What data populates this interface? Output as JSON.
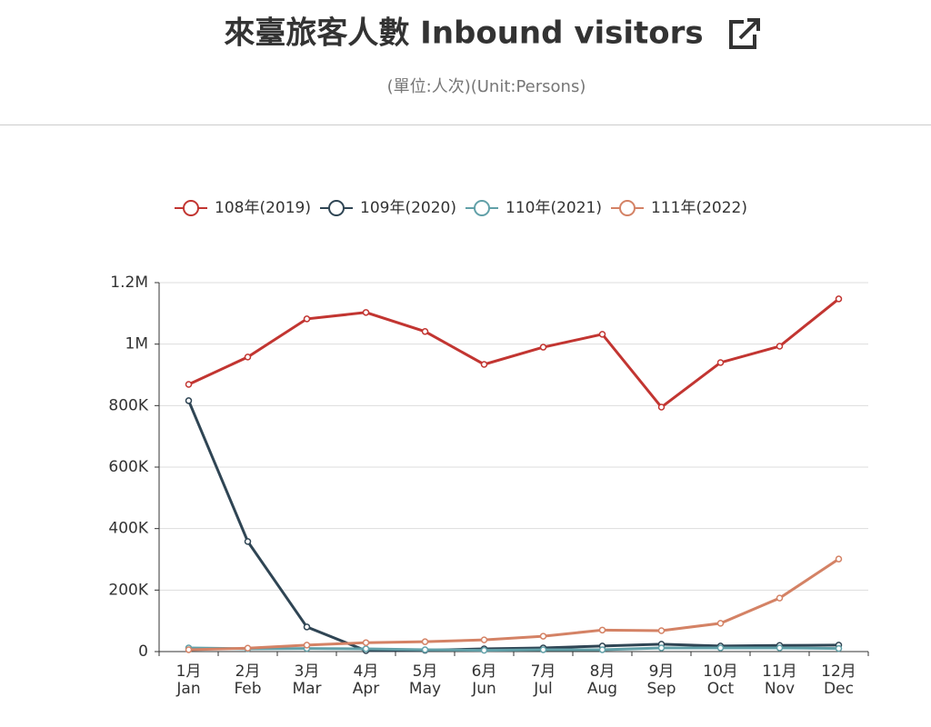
{
  "chart_data": {
    "type": "line",
    "title": "來臺旅客人數 Inbound visitors",
    "subtitle": "(單位:人次)(Unit:Persons)",
    "categories": [
      [
        "1月",
        "Jan"
      ],
      [
        "2月",
        "Feb"
      ],
      [
        "3月",
        "Mar"
      ],
      [
        "4月",
        "Apr"
      ],
      [
        "5月",
        "May"
      ],
      [
        "6月",
        "Jun"
      ],
      [
        "7月",
        "Jul"
      ],
      [
        "8月",
        "Aug"
      ],
      [
        "9月",
        "Sep"
      ],
      [
        "10月",
        "Oct"
      ],
      [
        "11月",
        "Nov"
      ],
      [
        "12月",
        "Dec"
      ]
    ],
    "series": [
      {
        "name": "108年(2019)",
        "color": "#c23531",
        "values": [
          869000,
          958000,
          1082000,
          1103000,
          1041000,
          934000,
          990000,
          1032000,
          795000,
          940000,
          993000,
          1147000
        ]
      },
      {
        "name": "109年(2020)",
        "color": "#2f4554",
        "values": [
          816000,
          358000,
          80000,
          3000,
          4000,
          9000,
          12000,
          18000,
          24000,
          18000,
          20000,
          21000
        ]
      },
      {
        "name": "110年(2021)",
        "color": "#61a0a8",
        "values": [
          12000,
          9000,
          10000,
          9000,
          6000,
          4000,
          6000,
          6000,
          12000,
          12000,
          12000,
          10000
        ]
      },
      {
        "name": "111年(2022)",
        "color": "#d48265",
        "values": [
          6000,
          11000,
          21000,
          29000,
          32000,
          38000,
          50000,
          70000,
          68000,
          92000,
          174000,
          301000
        ]
      }
    ],
    "ylim": [
      0,
      1200000
    ],
    "yticks": [
      0,
      {
        "value": 200000,
        "label": "200K"
      },
      {
        "value": 400000,
        "label": "400K"
      },
      {
        "value": 600000,
        "label": "600K"
      },
      {
        "value": 800000,
        "label": "800K"
      },
      {
        "value": 1000000,
        "label": "1M"
      },
      {
        "value": 1200000,
        "label": "1.2M"
      }
    ],
    "grid": true
  }
}
